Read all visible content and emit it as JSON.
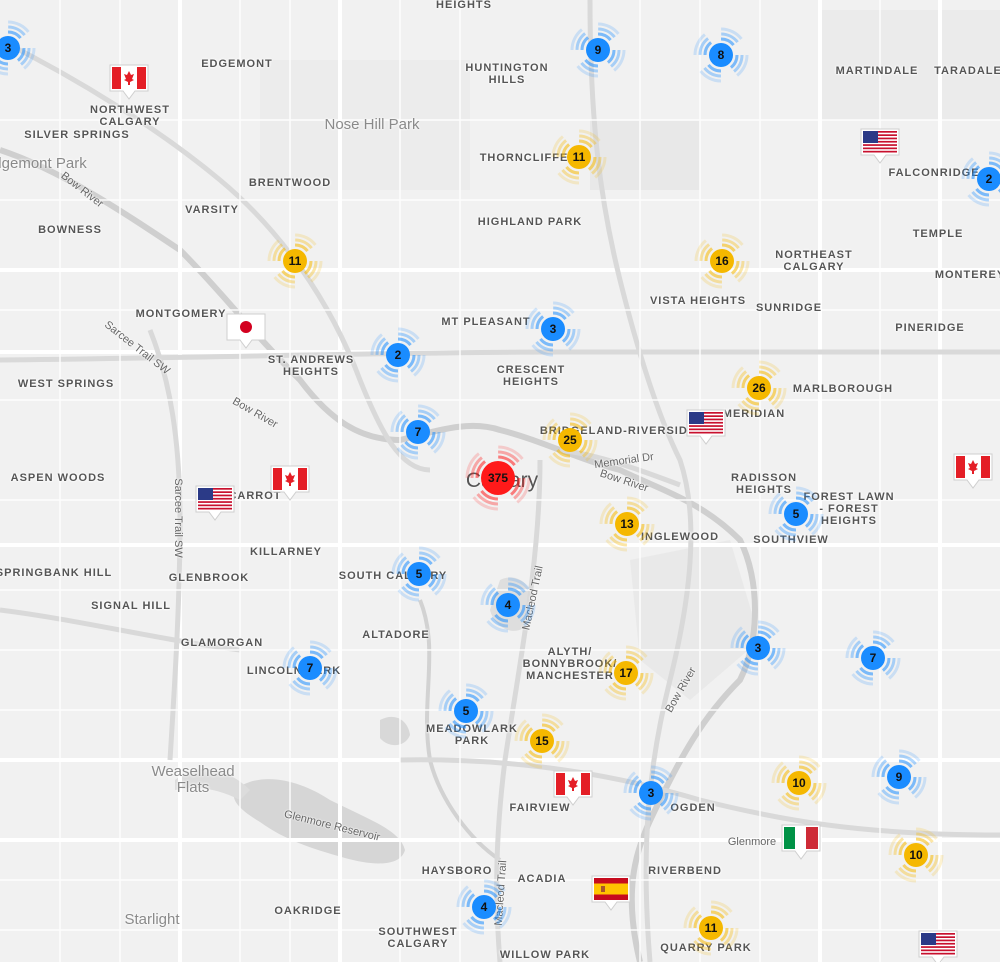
{
  "colors": {
    "blue": "#1a8cff",
    "yellow": "#f5b800",
    "red": "#ff1a1a"
  },
  "city_label": "Calgary",
  "neighborhoods": [
    "HEIGHTS",
    "EDGEMONT",
    "HUNTINGTON\nHILLS",
    "MARTINDALE",
    "TARADALE",
    "NORTHWEST\nCALGARY",
    "SILVER SPRINGS",
    "THORNCLIFFE",
    "FALCONRIDGE",
    "BRENTWOOD",
    "VARSITY",
    "HIGHLAND PARK",
    "BOWNESS",
    "TEMPLE",
    "NORTHEAST\nCALGARY",
    "MONTEREY",
    "VISTA HEIGHTS",
    "SUNRIDGE",
    "MONTGOMERY",
    "MT PLEASANT",
    "PINERIDGE",
    "ST. ANDREWS\nHEIGHTS",
    "CRESCENT\nHEIGHTS",
    "MARLBOROUGH",
    "WEST SPRINGS",
    "MERIDIAN",
    "BRIDGELAND-RIVERSIDE",
    "RADISSON\nHEIGHTS",
    "ASPEN WOODS",
    "CARROT",
    "FOREST LAWN\n- FOREST\nHEIGHTS",
    "INGLEWOOD",
    "SOUTHVIEW",
    "KILLARNEY",
    "SPRINGBANK HILL",
    "GLENBROOK",
    "SOUTH CALGARY",
    "SIGNAL HILL",
    "GLAMORGAN",
    "ALTADORE",
    "LINCOLN PARK",
    "ALYTH/\nBONNYBROOK/\nMANCHESTER",
    "MEADOWLARK\nPARK",
    "FAIRVIEW",
    "OGDEN",
    "RIVERBEND",
    "HAYSBORO",
    "ACADIA",
    "OAKRIDGE",
    "SOUTHWEST\nCALGARY",
    "WILLOW PARK",
    "QUARRY PARK"
  ],
  "parks": [
    "Nose Hill Park",
    "Edgemont Park",
    "Weaselhead\nFlats",
    "Starlight"
  ],
  "roads": [
    "Bow River",
    "Sarcee Trail SW",
    "Bow River",
    "Sarcee Trail SW",
    "Memorial Dr",
    "Bow River",
    "Macleod Trail",
    "Glenmore Reservoir",
    "Macleod Trail",
    "Bow River",
    "Glenmore"
  ],
  "clusters": [
    {
      "count": "3",
      "color": "blue"
    },
    {
      "count": "9",
      "color": "blue"
    },
    {
      "count": "8",
      "color": "blue"
    },
    {
      "count": "11",
      "color": "yellow"
    },
    {
      "count": "2",
      "color": "blue"
    },
    {
      "count": "11",
      "color": "yellow"
    },
    {
      "count": "16",
      "color": "yellow"
    },
    {
      "count": "3",
      "color": "blue"
    },
    {
      "count": "2",
      "color": "blue"
    },
    {
      "count": "26",
      "color": "yellow"
    },
    {
      "count": "7",
      "color": "blue"
    },
    {
      "count": "25",
      "color": "yellow"
    },
    {
      "count": "375",
      "color": "red"
    },
    {
      "count": "13",
      "color": "yellow"
    },
    {
      "count": "5",
      "color": "blue"
    },
    {
      "count": "5",
      "color": "blue"
    },
    {
      "count": "4",
      "color": "blue"
    },
    {
      "count": "3",
      "color": "blue"
    },
    {
      "count": "7",
      "color": "blue"
    },
    {
      "count": "7",
      "color": "blue"
    },
    {
      "count": "17",
      "color": "yellow"
    },
    {
      "count": "5",
      "color": "blue"
    },
    {
      "count": "15",
      "color": "yellow"
    },
    {
      "count": "10",
      "color": "yellow"
    },
    {
      "count": "9",
      "color": "blue"
    },
    {
      "count": "3",
      "color": "blue"
    },
    {
      "count": "10",
      "color": "yellow"
    },
    {
      "count": "4",
      "color": "blue"
    },
    {
      "count": "11",
      "color": "yellow"
    }
  ],
  "flags": [
    "canada",
    "usa",
    "japan",
    "usa",
    "canada",
    "usa",
    "canada",
    "canada",
    "italy",
    "spain",
    "usa"
  ]
}
